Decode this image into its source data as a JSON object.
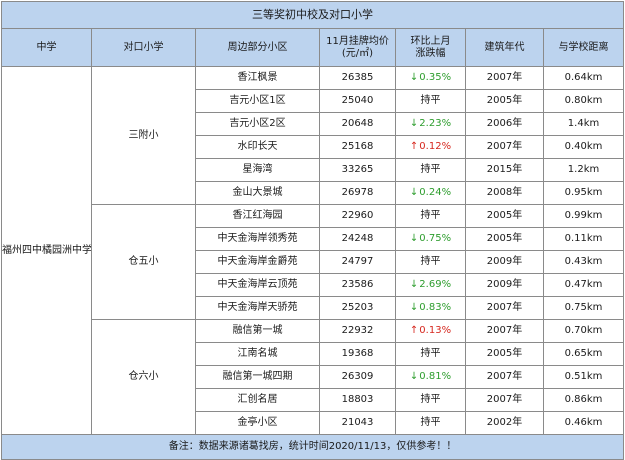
{
  "title": "三等奖初中校及对口小学",
  "headers": [
    "中学",
    "对口小学",
    "周边部分小区",
    "11月挂牌均价\n(元/㎡)",
    "环比上月\n涨跌幅",
    "建筑年代",
    "与学校距离"
  ],
  "middle_school": "福州四中橘园洲中学",
  "groups": [
    {
      "primary": "三附小",
      "rows": [
        {
          "name": "香江枫景",
          "price": "26385",
          "change": "0.35%",
          "dir": "down",
          "year": "2007年",
          "dist": "0.64km"
        },
        {
          "name": "吉元小区1区",
          "price": "25040",
          "change": "持平",
          "dir": "flat",
          "year": "2005年",
          "dist": "0.80km"
        },
        {
          "name": "吉元小区2区",
          "price": "20648",
          "change": "2.23%",
          "dir": "down",
          "year": "2006年",
          "dist": "1.4km"
        },
        {
          "name": "水印长天",
          "price": "25168",
          "change": "0.12%",
          "dir": "up",
          "year": "2007年",
          "dist": "0.40km"
        },
        {
          "name": "星海湾",
          "price": "33265",
          "change": "持平",
          "dir": "flat",
          "year": "2015年",
          "dist": "1.2km"
        },
        {
          "name": "金山大景城",
          "price": "26978",
          "change": "0.24%",
          "dir": "down",
          "year": "2008年",
          "dist": "0.95km"
        }
      ]
    },
    {
      "primary": "仓五小",
      "rows": [
        {
          "name": "香江红海园",
          "price": "22960",
          "change": "持平",
          "dir": "flat",
          "year": "2005年",
          "dist": "0.99km"
        },
        {
          "name": "中天金海岸领秀苑",
          "price": "24248",
          "change": "0.75%",
          "dir": "down",
          "year": "2005年",
          "dist": "0.11km"
        },
        {
          "name": "中天金海岸金爵苑",
          "price": "24797",
          "change": "持平",
          "dir": "flat",
          "year": "2009年",
          "dist": "0.43km"
        },
        {
          "name": "中天金海岸云顶苑",
          "price": "23586",
          "change": "2.69%",
          "dir": "down",
          "year": "2009年",
          "dist": "0.47km"
        },
        {
          "name": "中天金海岸天骄苑",
          "price": "25203",
          "change": "0.83%",
          "dir": "down",
          "year": "2007年",
          "dist": "0.75km"
        }
      ]
    },
    {
      "primary": "仓六小",
      "rows": [
        {
          "name": "融信第一城",
          "price": "22932",
          "change": "0.13%",
          "dir": "up",
          "year": "2007年",
          "dist": "0.70km"
        },
        {
          "name": "江南名城",
          "price": "19368",
          "change": "持平",
          "dir": "flat",
          "year": "2005年",
          "dist": "0.65km"
        },
        {
          "name": "融信第一城四期",
          "price": "26309",
          "change": "0.81%",
          "dir": "down",
          "year": "2007年",
          "dist": "0.51km"
        },
        {
          "name": "汇创名居",
          "price": "18803",
          "change": "持平",
          "dir": "flat",
          "year": "2007年",
          "dist": "0.86km"
        },
        {
          "name": "金亭小区",
          "price": "21043",
          "change": "持平",
          "dir": "flat",
          "year": "2002年",
          "dist": "0.46km"
        }
      ]
    }
  ],
  "footnote": "备注：数据来源诸葛找房，统计时间2020/11/13，仅供参考！！",
  "colors": {
    "header_bg": "#bcd3ee",
    "down": "#2e9d2e",
    "up": "#d6281f"
  },
  "icons": {
    "down": "arrow-down-icon",
    "up": "arrow-up-icon"
  }
}
